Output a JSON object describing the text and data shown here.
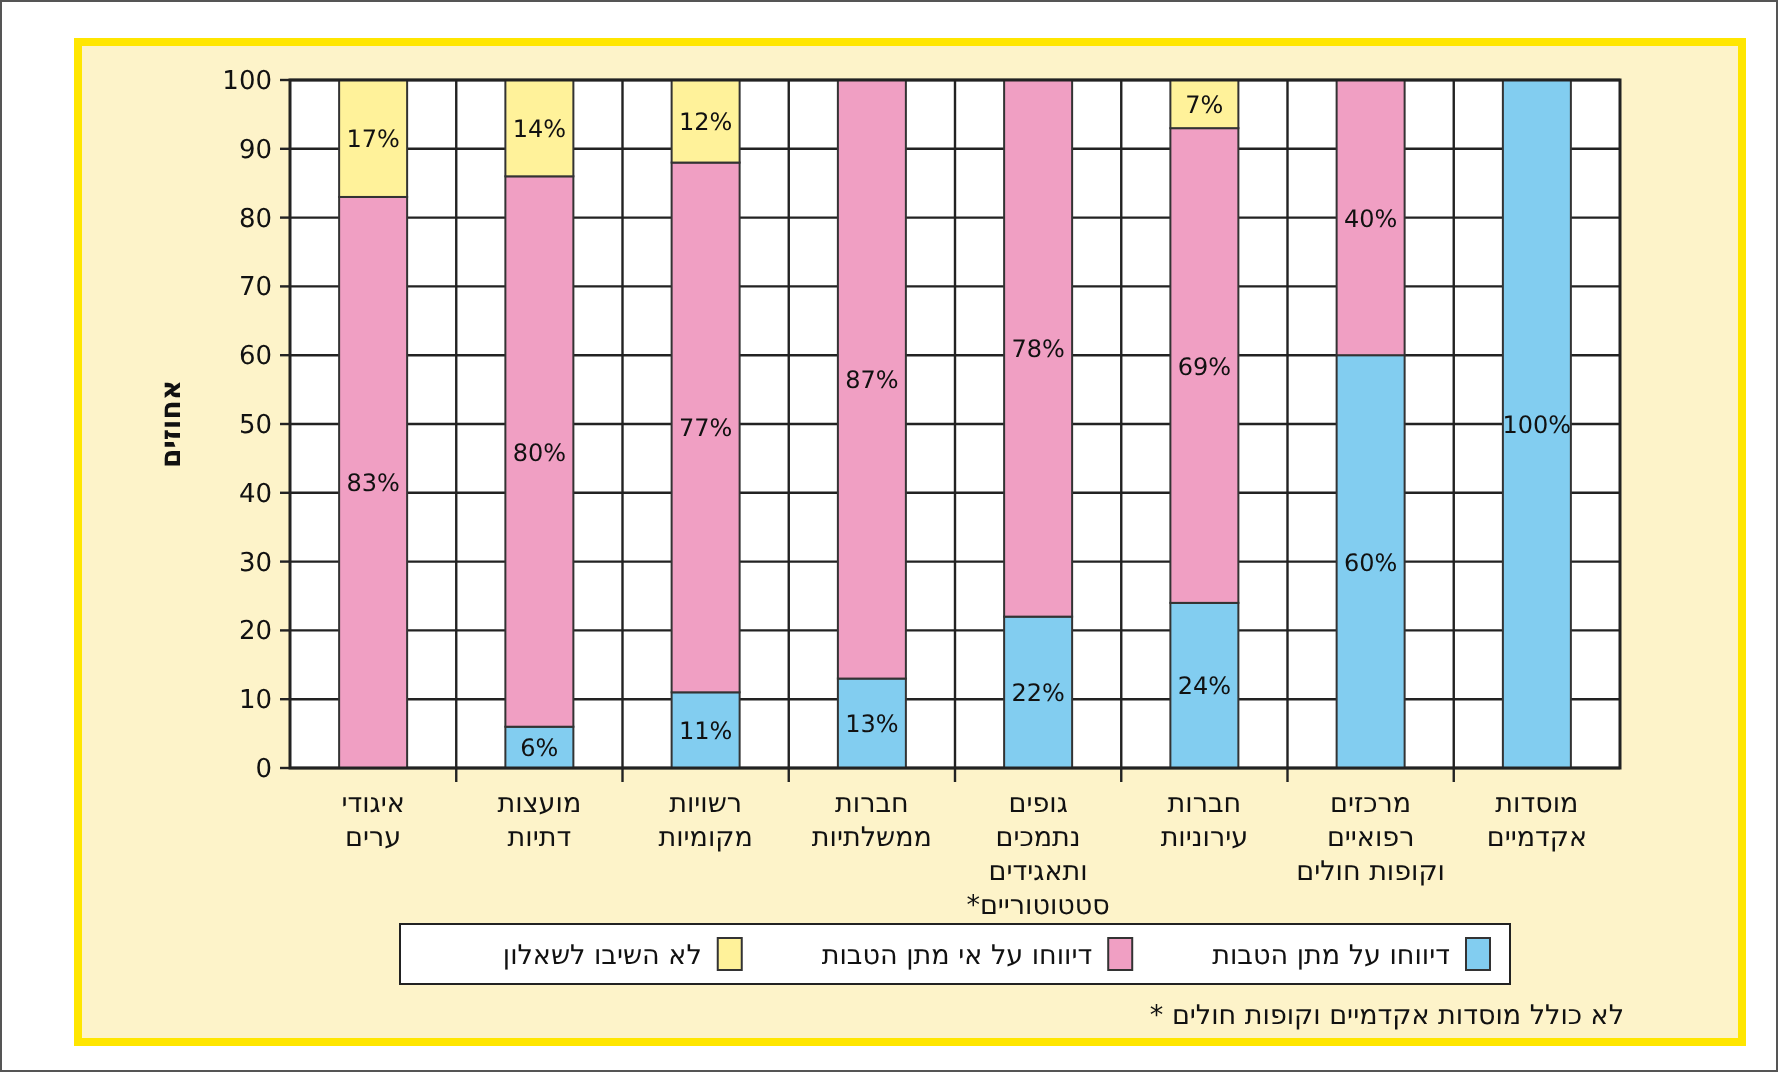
{
  "chart_data": {
    "type": "bar",
    "stacked": true,
    "ylabel": "אחוזים",
    "categories": [
      "איגודי\nערים",
      "מועצות\nדתיות",
      "רשויות\nמקומיות",
      "חברות\nממשלתיות",
      "גופים\nנתמכים\nותאגידים\nסטטוטוריים*",
      "חברות\nעירוניות",
      "מרכזים\nרפואיים\nוקופות חולים",
      "מוסדות\nאקדמיים"
    ],
    "series": [
      {
        "name": "דיווחו על מתן הטבות",
        "color": "#82cdf0",
        "values": [
          null,
          6,
          11,
          13,
          22,
          24,
          60,
          100
        ],
        "value_labels": [
          null,
          "6%",
          "11%",
          "13%",
          "22%",
          "24%",
          "60%",
          "100%"
        ]
      },
      {
        "name": "דיווחו על אי מתן הטבות",
        "color": "#f09fc3",
        "values": [
          83,
          80,
          77,
          87,
          78,
          69,
          40,
          null
        ],
        "value_labels": [
          "83%",
          "80%",
          "77%",
          "87%",
          "78%",
          "69%",
          "40%",
          null
        ]
      },
      {
        "name": "לא השיבו לשאלון",
        "color": "#fff29a",
        "values": [
          17,
          14,
          12,
          null,
          null,
          7,
          null,
          null
        ],
        "value_labels": [
          "17%",
          "14%",
          "12%",
          null,
          null,
          "7%",
          null,
          null
        ]
      }
    ],
    "ylim": [
      0,
      100
    ],
    "yticks": [
      0,
      10,
      20,
      30,
      40,
      50,
      60,
      70,
      80,
      90,
      100
    ],
    "grid": true,
    "legend": "bottom",
    "annotations": [
      "לא כולל מוסדות אקדמיים וקופות חולים *"
    ]
  }
}
